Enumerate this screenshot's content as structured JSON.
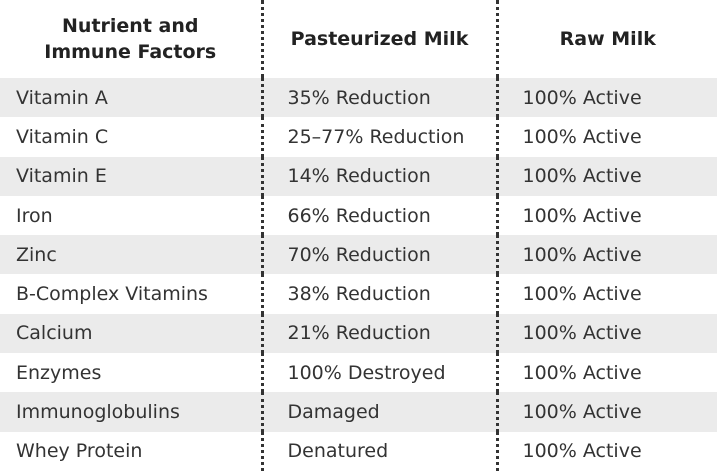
{
  "table": {
    "header": [
      "Nutrient and Immune Factors",
      "Pasteurized Milk",
      "Raw Milk"
    ],
    "rows": [
      [
        "Vitamin A",
        "35% Reduction",
        "100% Active"
      ],
      [
        "Vitamin C",
        "25–77% Reduction",
        "100% Active"
      ],
      [
        "Vitamin E",
        "14% Reduction",
        "100% Active"
      ],
      [
        "Iron",
        "66% Reduction",
        "100% Active"
      ],
      [
        "Zinc",
        "70% Reduction",
        "100% Active"
      ],
      [
        "B-Complex Vitamins",
        "38% Reduction",
        "100% Active"
      ],
      [
        "Calcium",
        "21% Reduction",
        "100% Active"
      ],
      [
        "Enzymes",
        "100% Destroyed",
        "100% Active"
      ],
      [
        "Immunoglobulins",
        "Damaged",
        "100% Active"
      ],
      [
        "Whey Protein",
        "Denatured",
        "100% Active"
      ]
    ]
  }
}
